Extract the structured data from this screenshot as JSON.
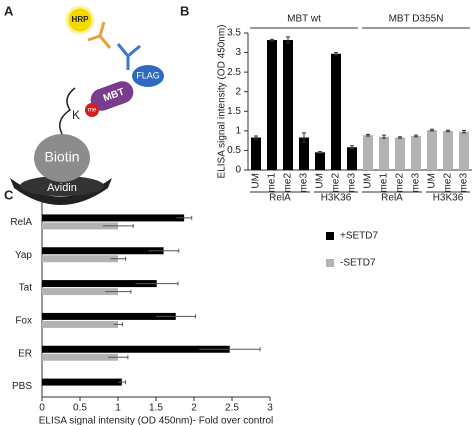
{
  "diagram": {
    "label": "A",
    "hrp": "HRP",
    "flag": "FLAG",
    "mbt": "MBT",
    "me": "me",
    "lysine": "K",
    "biotin": "Biotin",
    "avidin": "Avidin"
  },
  "chart_data": [
    {
      "type": "bar",
      "label": "B",
      "y_label": "ELISA signal intensity (OD 450nm)",
      "ylim": [
        0,
        3.5
      ],
      "yticks": [
        0,
        0.5,
        1,
        1.5,
        2,
        2.5,
        3,
        3.5
      ],
      "groups": [
        {
          "title": "MBT wt",
          "color": "#000000",
          "subgroups": [
            {
              "name": "RelA",
              "categories": [
                "UM",
                "me1",
                "me2",
                "me3"
              ],
              "values": [
                0.83,
                3.32,
                3.32,
                0.83
              ],
              "errors": [
                0.04,
                0.02,
                0.08,
                0.12
              ]
            },
            {
              "name": "H3K36",
              "categories": [
                "UM",
                "me2",
                "me3"
              ],
              "values": [
                0.45,
                2.97,
                0.58
              ],
              "errors": [
                0.02,
                0.03,
                0.04
              ]
            }
          ]
        },
        {
          "title": "MBT D355N",
          "color": "#b3b3b3",
          "subgroups": [
            {
              "name": "RelA",
              "categories": [
                "UM",
                "me1",
                "me2",
                "me3"
              ],
              "values": [
                0.89,
                0.85,
                0.83,
                0.87
              ],
              "errors": [
                0.02,
                0.04,
                0.02,
                0.02
              ]
            },
            {
              "name": "H3K36",
              "categories": [
                "UM",
                "me2",
                "me3"
              ],
              "values": [
                1.02,
                1.0,
                0.98
              ],
              "errors": [
                0.02,
                0.02,
                0.03
              ]
            }
          ]
        }
      ]
    },
    {
      "type": "hbar",
      "label": "C",
      "x_label": "ELISA signal intensity (OD 450nm)- Fold over control",
      "categories": [
        "RelA",
        "Yap",
        "Tat",
        "Fox",
        "ER",
        "PBS"
      ],
      "xlim": [
        0,
        3
      ],
      "xticks": [
        0,
        0.5,
        1,
        1.5,
        2,
        2.5,
        3
      ],
      "legend": "right",
      "series": [
        {
          "name": "+SETD7",
          "color": "#000000",
          "values": [
            1.87,
            1.6,
            1.51,
            1.76,
            2.47,
            1.05
          ],
          "errors": [
            0.1,
            0.2,
            0.28,
            0.26,
            0.4,
            0.05
          ]
        },
        {
          "name": "-SETD7",
          "color": "#b3b3b3",
          "values": [
            1.0,
            1.0,
            1.0,
            1.0,
            1.0,
            null
          ],
          "errors": [
            0.2,
            0.1,
            0.17,
            0.06,
            0.13,
            null
          ]
        }
      ]
    }
  ]
}
